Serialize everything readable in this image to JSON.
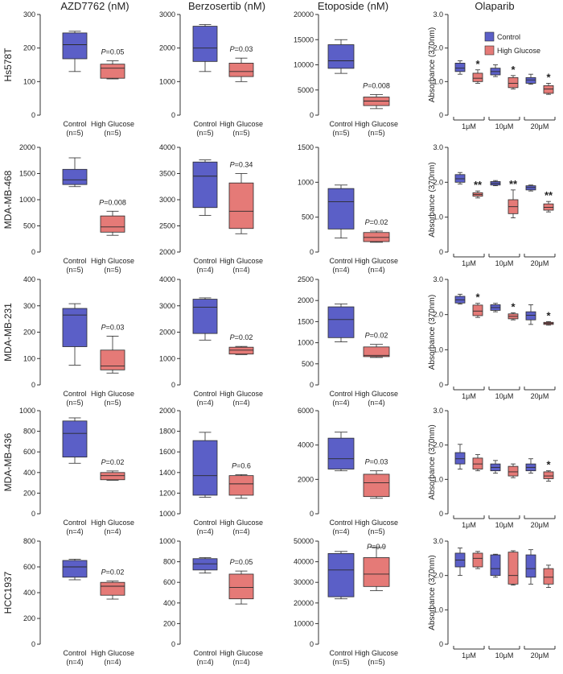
{
  "colors": {
    "control": "#5b5fc7",
    "high_glucose": "#e57a77",
    "box_stroke": "#2b2b2b",
    "axis": "#333333",
    "text": "#222222"
  },
  "columns": [
    {
      "title": "AZD7762 (nM)"
    },
    {
      "title": "Berzosertib (nM)"
    },
    {
      "title": "Etoposide (nM)"
    },
    {
      "title": "Olaparib"
    }
  ],
  "rows": [
    {
      "label": "Hs578T"
    },
    {
      "label": "MDA-MB-468"
    },
    {
      "label": "MDA-MB-231"
    },
    {
      "label": "MDA-MB-436"
    },
    {
      "label": "HCC1937"
    }
  ],
  "legend": {
    "control": "Control",
    "high_glucose": "High Glucose"
  },
  "olaparib_ylabel": "Absorbance (370nm)",
  "olaparib_doses": [
    "1μM",
    "10μM",
    "20μM"
  ],
  "chart_data": [
    {
      "type": "box",
      "row": 0,
      "col": 0,
      "ylim": [
        0,
        300
      ],
      "ticks": [
        0,
        100,
        200,
        300
      ],
      "groups": [
        {
          "name": "Control",
          "n": "(n=5)",
          "min": 130,
          "q1": 168,
          "median": 210,
          "q3": 245,
          "max": 250
        },
        {
          "name": "High Glucose",
          "n": "(n=5)",
          "min": 108,
          "q1": 110,
          "median": 140,
          "q3": 152,
          "max": 162
        }
      ],
      "annotation": "=0.05"
    },
    {
      "type": "box",
      "row": 0,
      "col": 1,
      "ylim": [
        0,
        3000
      ],
      "ticks": [
        0,
        1000,
        2000,
        3000
      ],
      "groups": [
        {
          "name": "Control",
          "n": "(n=5)",
          "min": 1300,
          "q1": 1600,
          "median": 2000,
          "q3": 2650,
          "max": 2700
        },
        {
          "name": "High Glucose",
          "n": "(n=5)",
          "min": 1000,
          "q1": 1150,
          "median": 1300,
          "q3": 1550,
          "max": 1700
        }
      ],
      "annotation": "=0.03"
    },
    {
      "type": "box",
      "row": 0,
      "col": 2,
      "ylim": [
        0,
        20000
      ],
      "ticks": [
        0,
        5000,
        10000,
        15000,
        20000
      ],
      "groups": [
        {
          "name": "Control",
          "n": "(n=5)",
          "min": 8300,
          "q1": 9300,
          "median": 10800,
          "q3": 14000,
          "max": 15000
        },
        {
          "name": "High Glucose",
          "n": "(n=5)",
          "min": 1300,
          "q1": 1900,
          "median": 2800,
          "q3": 3600,
          "max": 4100
        }
      ],
      "annotation": "=0.008"
    },
    {
      "type": "box",
      "row": 1,
      "col": 0,
      "ylim": [
        0,
        2000
      ],
      "ticks": [
        0,
        500,
        1000,
        1500,
        2000
      ],
      "groups": [
        {
          "name": "Control",
          "n": "(n=5)",
          "min": 1250,
          "q1": 1290,
          "median": 1380,
          "q3": 1580,
          "max": 1800
        },
        {
          "name": "High Glucose",
          "n": "(n=5)",
          "min": 320,
          "q1": 380,
          "median": 480,
          "q3": 690,
          "max": 780
        }
      ],
      "annotation": "=0.008"
    },
    {
      "type": "box",
      "row": 1,
      "col": 1,
      "ylim": [
        2000,
        4000
      ],
      "ticks": [
        2000,
        2500,
        3000,
        3500,
        4000
      ],
      "groups": [
        {
          "name": "Control",
          "n": "(n=4)",
          "min": 2700,
          "q1": 2850,
          "median": 3450,
          "q3": 3720,
          "max": 3760
        },
        {
          "name": "High Glucose",
          "n": "(n=4)",
          "min": 2350,
          "q1": 2450,
          "median": 2780,
          "q3": 3320,
          "max": 3500
        }
      ],
      "annotation": "=0.34"
    },
    {
      "type": "box",
      "row": 1,
      "col": 2,
      "ylim": [
        0,
        1500
      ],
      "ticks": [
        0,
        500,
        1000,
        1500
      ],
      "groups": [
        {
          "name": "Control",
          "n": "(n=4)",
          "min": 200,
          "q1": 330,
          "median": 720,
          "q3": 910,
          "max": 960
        },
        {
          "name": "High Glucose",
          "n": "(n=4)",
          "min": 140,
          "q1": 150,
          "median": 210,
          "q3": 280,
          "max": 300
        }
      ],
      "annotation": "=0.02"
    },
    {
      "type": "box",
      "row": 2,
      "col": 0,
      "ylim": [
        0,
        400
      ],
      "ticks": [
        0,
        100,
        200,
        300,
        400
      ],
      "groups": [
        {
          "name": "Control",
          "n": "(n=5)",
          "min": 75,
          "q1": 145,
          "median": 265,
          "q3": 290,
          "max": 308
        },
        {
          "name": "High Glucose",
          "n": "(n=5)",
          "min": 45,
          "q1": 57,
          "median": 72,
          "q3": 132,
          "max": 185
        }
      ],
      "annotation": "=0.03"
    },
    {
      "type": "box",
      "row": 2,
      "col": 1,
      "ylim": [
        0,
        4000
      ],
      "ticks": [
        0,
        1000,
        2000,
        3000,
        4000
      ],
      "groups": [
        {
          "name": "Control",
          "n": "(n=4)",
          "min": 1700,
          "q1": 1950,
          "median": 2950,
          "q3": 3250,
          "max": 3300
        },
        {
          "name": "High Glucose",
          "n": "(n=4)",
          "min": 1150,
          "q1": 1170,
          "median": 1320,
          "q3": 1430,
          "max": 1460
        }
      ],
      "annotation": "=0.02"
    },
    {
      "type": "box",
      "row": 2,
      "col": 2,
      "ylim": [
        0,
        2500
      ],
      "ticks": [
        0,
        500,
        1000,
        1500,
        2000,
        2500
      ],
      "groups": [
        {
          "name": "Control",
          "n": "(n=4)",
          "min": 1020,
          "q1": 1120,
          "median": 1550,
          "q3": 1850,
          "max": 1920
        },
        {
          "name": "High Glucose",
          "n": "(n=4)",
          "min": 650,
          "q1": 670,
          "median": 700,
          "q3": 900,
          "max": 960
        }
      ],
      "annotation": "=0.02"
    },
    {
      "type": "box",
      "row": 3,
      "col": 0,
      "ylim": [
        0,
        1000
      ],
      "ticks": [
        0,
        200,
        400,
        600,
        800,
        1000
      ],
      "groups": [
        {
          "name": "Control",
          "n": "(n=4)",
          "min": 490,
          "q1": 550,
          "median": 780,
          "q3": 900,
          "max": 930
        },
        {
          "name": "High Glucose",
          "n": "(n=4)",
          "min": 325,
          "q1": 330,
          "median": 370,
          "q3": 400,
          "max": 415
        }
      ],
      "annotation": "=0.02"
    },
    {
      "type": "box",
      "row": 3,
      "col": 1,
      "ylim": [
        1000,
        2000
      ],
      "ticks": [
        1000,
        1200,
        1400,
        1600,
        1800,
        2000
      ],
      "groups": [
        {
          "name": "Control",
          "n": "(n=4)",
          "min": 1160,
          "q1": 1180,
          "median": 1370,
          "q3": 1710,
          "max": 1790
        },
        {
          "name": "High Glucose",
          "n": "(n=4)",
          "min": 1150,
          "q1": 1180,
          "median": 1290,
          "q3": 1370,
          "max": 1380
        }
      ],
      "annotation": "=0.6"
    },
    {
      "type": "box",
      "row": 3,
      "col": 2,
      "ylim": [
        0,
        6000
      ],
      "ticks": [
        0,
        2000,
        4000,
        6000
      ],
      "groups": [
        {
          "name": "Control",
          "n": "(n=4)",
          "min": 2500,
          "q1": 2600,
          "median": 3200,
          "q3": 4400,
          "max": 4750
        },
        {
          "name": "High Glucose",
          "n": "(n=5)",
          "min": 900,
          "q1": 1000,
          "median": 1800,
          "q3": 2300,
          "max": 2500
        }
      ],
      "annotation": "=0.03"
    },
    {
      "type": "box",
      "row": 4,
      "col": 0,
      "ylim": [
        0,
        800
      ],
      "ticks": [
        0,
        200,
        400,
        600,
        800
      ],
      "groups": [
        {
          "name": "Control",
          "n": "(n=4)",
          "min": 500,
          "q1": 520,
          "median": 600,
          "q3": 650,
          "max": 660
        },
        {
          "name": "High Glucose",
          "n": "(n=4)",
          "min": 350,
          "q1": 380,
          "median": 450,
          "q3": 480,
          "max": 490
        }
      ],
      "annotation": "=0.02"
    },
    {
      "type": "box",
      "row": 4,
      "col": 1,
      "ylim": [
        0,
        1000
      ],
      "ticks": [
        0,
        200,
        400,
        600,
        800,
        1000
      ],
      "groups": [
        {
          "name": "Control",
          "n": "(n=4)",
          "min": 690,
          "q1": 720,
          "median": 780,
          "q3": 830,
          "max": 840
        },
        {
          "name": "High Glucose",
          "n": "(n=4)",
          "min": 390,
          "q1": 440,
          "median": 550,
          "q3": 680,
          "max": 710
        }
      ],
      "annotation": "=0.05"
    },
    {
      "type": "box",
      "row": 4,
      "col": 2,
      "ylim": [
        0,
        50000
      ],
      "ticks": [
        0,
        10000,
        20000,
        30000,
        40000,
        50000
      ],
      "groups": [
        {
          "name": "Control",
          "n": "(n=5)",
          "min": 22000,
          "q1": 23000,
          "median": 36000,
          "q3": 44000,
          "max": 45000
        },
        {
          "name": "High Glucose",
          "n": "(n=5)",
          "min": 26000,
          "q1": 28000,
          "median": 34000,
          "q3": 42000,
          "max": 47000
        }
      ],
      "annotation": "=0.9"
    },
    {
      "type": "box",
      "row": 0,
      "col": 3,
      "ylim": [
        0,
        3.0
      ],
      "ticks": [
        "0",
        "1.0",
        "2.0",
        "3.0"
      ],
      "doses": [
        {
          "dose": "1μM",
          "control": {
            "min": 1.22,
            "q1": 1.3,
            "median": 1.4,
            "q3": 1.55,
            "max": 1.62
          },
          "high_glucose": {
            "min": 0.95,
            "q1": 1.0,
            "median": 1.1,
            "q3": 1.25,
            "max": 1.35
          },
          "sig": "*"
        },
        {
          "dose": "10μM",
          "control": {
            "min": 1.15,
            "q1": 1.2,
            "median": 1.3,
            "q3": 1.4,
            "max": 1.5
          },
          "high_glucose": {
            "min": 0.78,
            "q1": 0.82,
            "median": 0.95,
            "q3": 1.12,
            "max": 1.18
          },
          "sig": "*"
        },
        {
          "dose": "20μM",
          "control": {
            "min": 0.92,
            "q1": 0.95,
            "median": 1.05,
            "q3": 1.12,
            "max": 1.22
          },
          "high_glucose": {
            "min": 0.62,
            "q1": 0.65,
            "median": 0.78,
            "q3": 0.88,
            "max": 0.95
          },
          "sig": "*"
        }
      ]
    },
    {
      "type": "box",
      "row": 1,
      "col": 3,
      "ylim": [
        0,
        3.0
      ],
      "ticks": [
        "0",
        "1.0",
        "2.0",
        "3.0"
      ],
      "doses": [
        {
          "dose": "1μM",
          "control": {
            "min": 1.95,
            "q1": 2.0,
            "median": 2.1,
            "q3": 2.22,
            "max": 2.28
          },
          "high_glucose": {
            "min": 1.55,
            "q1": 1.6,
            "median": 1.65,
            "q3": 1.7,
            "max": 1.75
          },
          "sig": "**"
        },
        {
          "dose": "10μM",
          "control": {
            "min": 1.9,
            "q1": 1.92,
            "median": 1.97,
            "q3": 2.02,
            "max": 2.05
          },
          "high_glucose": {
            "min": 0.98,
            "q1": 1.1,
            "median": 1.3,
            "q3": 1.5,
            "max": 1.78
          },
          "sig": "**"
        },
        {
          "dose": "20μM",
          "control": {
            "min": 1.75,
            "q1": 1.78,
            "median": 1.85,
            "q3": 1.9,
            "max": 1.92
          },
          "high_glucose": {
            "min": 1.15,
            "q1": 1.2,
            "median": 1.28,
            "q3": 1.38,
            "max": 1.45
          },
          "sig": "**"
        }
      ]
    },
    {
      "type": "box",
      "row": 2,
      "col": 3,
      "ylim": [
        0,
        3.0
      ],
      "ticks": [
        "0",
        "1.0",
        "2.0",
        "3.0"
      ],
      "doses": [
        {
          "dose": "1μM",
          "control": {
            "min": 2.3,
            "q1": 2.33,
            "median": 2.42,
            "q3": 2.52,
            "max": 2.58
          },
          "high_glucose": {
            "min": 1.92,
            "q1": 1.97,
            "median": 2.1,
            "q3": 2.27,
            "max": 2.32
          },
          "sig": "*"
        },
        {
          "dose": "10μM",
          "control": {
            "min": 2.08,
            "q1": 2.12,
            "median": 2.2,
            "q3": 2.28,
            "max": 2.32
          },
          "high_glucose": {
            "min": 1.85,
            "q1": 1.88,
            "median": 1.95,
            "q3": 2.02,
            "max": 2.05
          },
          "sig": "*"
        },
        {
          "dose": "20μM",
          "control": {
            "min": 1.72,
            "q1": 1.85,
            "median": 1.98,
            "q3": 2.08,
            "max": 2.28
          },
          "high_glucose": {
            "min": 1.7,
            "q1": 1.72,
            "median": 1.75,
            "q3": 1.78,
            "max": 1.8
          },
          "sig": "*"
        }
      ]
    },
    {
      "type": "box",
      "row": 3,
      "col": 3,
      "ylim": [
        0,
        3.0
      ],
      "ticks": [
        "0",
        "1.0",
        "2.0",
        "3.0"
      ],
      "doses": [
        {
          "dose": "1μM",
          "control": {
            "min": 1.3,
            "q1": 1.45,
            "median": 1.6,
            "q3": 1.78,
            "max": 2.02
          },
          "high_glucose": {
            "min": 1.25,
            "q1": 1.3,
            "median": 1.45,
            "q3": 1.62,
            "max": 1.72
          },
          "sig": ""
        },
        {
          "dose": "10μM",
          "control": {
            "min": 1.18,
            "q1": 1.25,
            "median": 1.35,
            "q3": 1.45,
            "max": 1.55
          },
          "high_glucose": {
            "min": 1.05,
            "q1": 1.1,
            "median": 1.22,
            "q3": 1.38,
            "max": 1.45
          },
          "sig": ""
        },
        {
          "dose": "20μM",
          "control": {
            "min": 1.18,
            "q1": 1.25,
            "median": 1.35,
            "q3": 1.45,
            "max": 1.6
          },
          "high_glucose": {
            "min": 0.95,
            "q1": 1.02,
            "median": 1.1,
            "q3": 1.22,
            "max": 1.25
          },
          "sig": "*"
        }
      ]
    },
    {
      "type": "box",
      "row": 4,
      "col": 3,
      "ylim": [
        0,
        3.0
      ],
      "ticks": [
        "0",
        "1.0",
        "2.0",
        "3.0"
      ],
      "doses": [
        {
          "dose": "1μM",
          "control": {
            "min": 2.0,
            "q1": 2.25,
            "median": 2.45,
            "q3": 2.65,
            "max": 2.8
          },
          "high_glucose": {
            "min": 2.2,
            "q1": 2.25,
            "median": 2.5,
            "q3": 2.65,
            "max": 2.7
          },
          "sig": ""
        },
        {
          "dose": "10μM",
          "control": {
            "min": 1.95,
            "q1": 2.0,
            "median": 2.2,
            "q3": 2.6,
            "max": 2.62
          },
          "high_glucose": {
            "min": 1.72,
            "q1": 1.75,
            "median": 2.0,
            "q3": 2.68,
            "max": 2.72
          },
          "sig": ""
        },
        {
          "dose": "20μM",
          "control": {
            "min": 1.75,
            "q1": 1.95,
            "median": 2.2,
            "q3": 2.6,
            "max": 2.75
          },
          "high_glucose": {
            "min": 1.65,
            "q1": 1.75,
            "median": 1.95,
            "q3": 2.2,
            "max": 2.3
          },
          "sig": ""
        }
      ]
    }
  ]
}
